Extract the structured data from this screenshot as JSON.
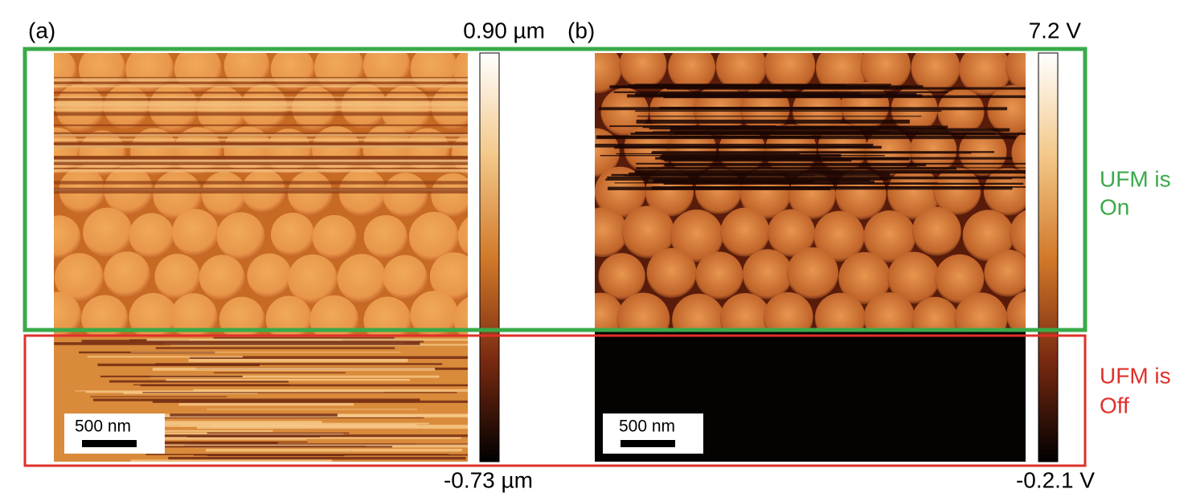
{
  "panels": [
    {
      "label": "(a)",
      "max_label": "0.90 µm",
      "min_label": "-0.73 µm",
      "scale_bar": "500 nm"
    },
    {
      "label": "(b)",
      "max_label": "7.2 V",
      "min_label": "-0.2.1 V",
      "scale_bar": "500 nm"
    }
  ],
  "annotations": {
    "on": [
      "UFM is",
      "On"
    ],
    "off": [
      "UFM is",
      "Off"
    ]
  }
}
